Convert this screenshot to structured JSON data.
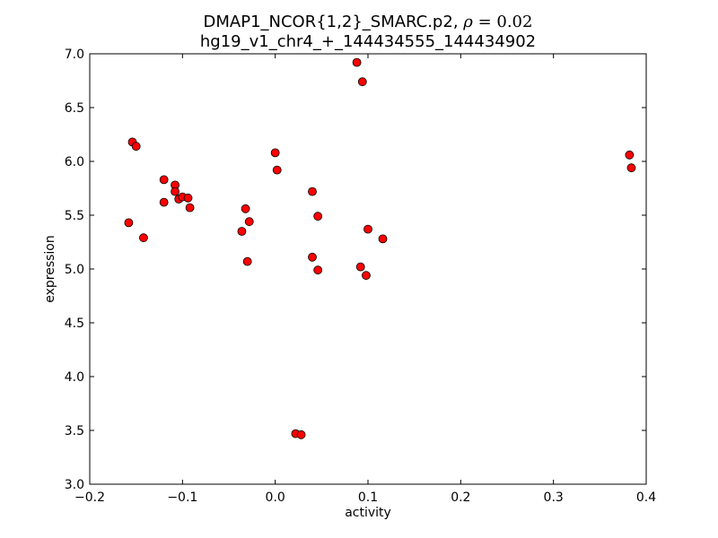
{
  "chart_data": {
    "type": "scatter",
    "title_line1_main": "DMAP1_NCOR{1,2}_SMARC.p2, ",
    "title_line1_rho": "ρ",
    "title_line1_eq": " = 0.02",
    "title_line2": "hg19_v1_chr4_+_144434555_144434902",
    "xlabel": "activity",
    "ylabel": "expression",
    "xlim": [
      -0.2,
      0.4
    ],
    "ylim": [
      3.0,
      7.0
    ],
    "xticks": [
      -0.2,
      -0.1,
      0.0,
      0.1,
      0.2,
      0.3,
      0.4
    ],
    "xtick_labels": [
      "−0.2",
      "−0.1",
      "0.0",
      "0.1",
      "0.2",
      "0.3",
      "0.4"
    ],
    "yticks": [
      3.0,
      3.5,
      4.0,
      4.5,
      5.0,
      5.5,
      6.0,
      6.5,
      7.0
    ],
    "ytick_labels": [
      "3.0",
      "3.5",
      "4.0",
      "4.5",
      "5.0",
      "5.5",
      "6.0",
      "6.5",
      "7.0"
    ],
    "grid": false,
    "marker_color": "#ff0000",
    "marker_edge_color": "#000000",
    "points": [
      {
        "x": -0.158,
        "y": 5.43
      },
      {
        "x": -0.154,
        "y": 6.18
      },
      {
        "x": -0.15,
        "y": 6.14
      },
      {
        "x": -0.142,
        "y": 5.29
      },
      {
        "x": -0.12,
        "y": 5.83
      },
      {
        "x": -0.12,
        "y": 5.62
      },
      {
        "x": -0.108,
        "y": 5.78
      },
      {
        "x": -0.108,
        "y": 5.72
      },
      {
        "x": -0.104,
        "y": 5.65
      },
      {
        "x": -0.1,
        "y": 5.67
      },
      {
        "x": -0.094,
        "y": 5.66
      },
      {
        "x": -0.092,
        "y": 5.57
      },
      {
        "x": -0.036,
        "y": 5.35
      },
      {
        "x": -0.032,
        "y": 5.56
      },
      {
        "x": -0.028,
        "y": 5.44
      },
      {
        "x": -0.03,
        "y": 5.07
      },
      {
        "x": 0.0,
        "y": 6.08
      },
      {
        "x": 0.002,
        "y": 5.92
      },
      {
        "x": 0.022,
        "y": 3.47
      },
      {
        "x": 0.028,
        "y": 3.46
      },
      {
        "x": 0.04,
        "y": 5.72
      },
      {
        "x": 0.04,
        "y": 5.11
      },
      {
        "x": 0.046,
        "y": 5.49
      },
      {
        "x": 0.046,
        "y": 4.99
      },
      {
        "x": 0.088,
        "y": 6.92
      },
      {
        "x": 0.094,
        "y": 6.74
      },
      {
        "x": 0.092,
        "y": 5.02
      },
      {
        "x": 0.098,
        "y": 4.94
      },
      {
        "x": 0.1,
        "y": 5.37
      },
      {
        "x": 0.116,
        "y": 5.28
      },
      {
        "x": 0.382,
        "y": 6.06
      },
      {
        "x": 0.384,
        "y": 5.94
      }
    ]
  }
}
